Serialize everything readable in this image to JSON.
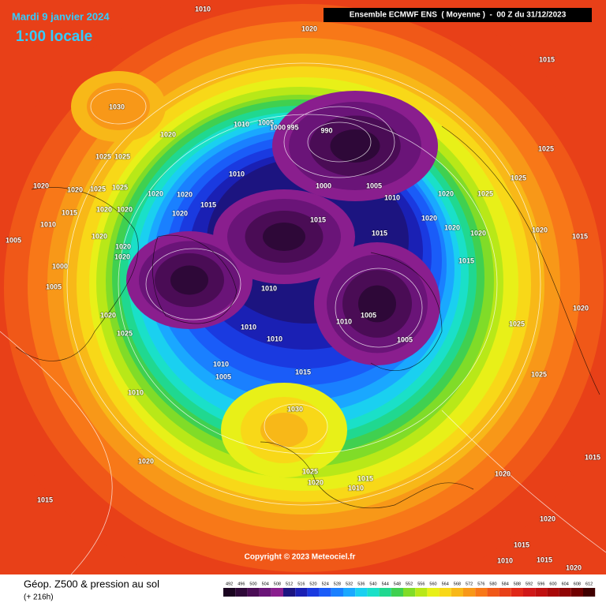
{
  "header": {
    "date": "Mardi 9 janvier 2024",
    "time": "1:00 locale",
    "model": "Ensemble ECMWF ENS  ( Moyenne )  -  00 Z du 31/12/2023"
  },
  "copyright": "Copyright © 2023 Meteociel.fr",
  "footer": {
    "title": "Géop. Z500 & pression au sol",
    "subtitle": "(+ 216h)"
  },
  "colorbar": {
    "levels": [
      492,
      496,
      500,
      504,
      508,
      512,
      516,
      520,
      524,
      528,
      532,
      536,
      540,
      544,
      548,
      552,
      556,
      560,
      564,
      568,
      572,
      576,
      580,
      584,
      588,
      592,
      596,
      600,
      604,
      608,
      612
    ],
    "colors": [
      "#1a0420",
      "#2e0838",
      "#4a0c55",
      "#6a1478",
      "#8a1e8e",
      "#1c1480",
      "#1a20b4",
      "#1a3ae0",
      "#1a5cf8",
      "#1a80ff",
      "#1aa8ff",
      "#1ad0f0",
      "#1ae0c8",
      "#20d890",
      "#40d050",
      "#80dc28",
      "#b8e818",
      "#e8f018",
      "#f8d818",
      "#f8b818",
      "#f89818",
      "#f87818",
      "#f05818",
      "#e84018",
      "#e02818",
      "#d01818",
      "#c01010",
      "#a80808",
      "#900404",
      "#700000",
      "#400000"
    ]
  },
  "pressure_labels": [
    1010,
    1020,
    1015,
    1030,
    1020,
    1025,
    1025,
    1010,
    1005,
    1000,
    995,
    990,
    1010,
    1000,
    1005,
    1010,
    1020,
    1025,
    1025,
    1025,
    1020,
    1020,
    1025,
    1025,
    1020,
    1020,
    1015,
    1020,
    1020,
    1020,
    1015,
    1010,
    1005,
    1000,
    1005,
    1020,
    1020,
    1020,
    1015,
    1015,
    1020,
    1020,
    1020,
    1015,
    1020,
    1015,
    1010,
    1010,
    1005,
    1005,
    1020,
    1025,
    1010,
    1010,
    1010,
    1005,
    1015,
    1010,
    1030,
    1020,
    1015,
    1025,
    1020,
    1015,
    1010,
    1020,
    1015,
    1020,
    1015,
    1010,
    1015,
    1020,
    1025,
    1025,
    1020
  ]
}
